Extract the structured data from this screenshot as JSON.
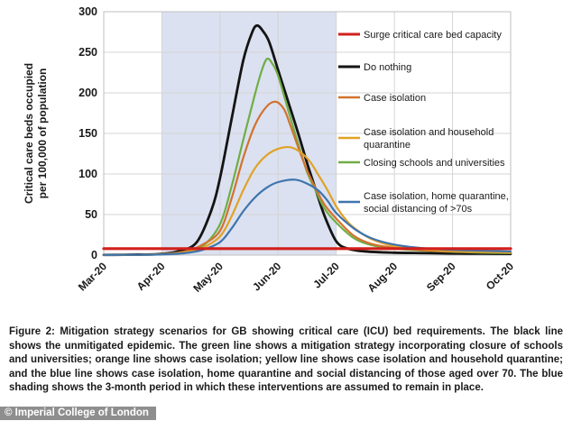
{
  "chart_data": {
    "type": "line",
    "title": "",
    "ylabel_lines": [
      "Critical care beds occupied",
      "per 100,000 of population"
    ],
    "xlabel": "",
    "x_tick_labels": [
      "Mar-20",
      "Apr-20",
      "May-20",
      "Jun-20",
      "Jul-20",
      "Aug-20",
      "Sep-20",
      "Oct-20"
    ],
    "y_ticks": [
      0,
      50,
      100,
      150,
      200,
      250,
      300
    ],
    "ylim": [
      0,
      300
    ],
    "x_unit": "months since Mar-20",
    "xlim_months": [
      0,
      7
    ],
    "grid": true,
    "shading": {
      "start_month": 1,
      "end_month": 4,
      "start_label": "Apr-20",
      "end_label": "Jul-20",
      "color": "#dbe1f0",
      "meaning": "3-month period in which interventions are assumed to remain in place"
    },
    "series": [
      {
        "name": "Do nothing",
        "color": "#141414",
        "width": 2.8,
        "points": [
          [
            0,
            0.3
          ],
          [
            0.6,
            0.6
          ],
          [
            1.0,
            1.5
          ],
          [
            1.3,
            5
          ],
          [
            1.6,
            16
          ],
          [
            1.85,
            55
          ],
          [
            2.0,
            95
          ],
          [
            2.2,
            168
          ],
          [
            2.4,
            240
          ],
          [
            2.55,
            274
          ],
          [
            2.64,
            283
          ],
          [
            2.75,
            275
          ],
          [
            2.85,
            262
          ],
          [
            3.0,
            228
          ],
          [
            3.2,
            183
          ],
          [
            3.35,
            149
          ],
          [
            3.5,
            113
          ],
          [
            3.65,
            80
          ],
          [
            3.8,
            48
          ],
          [
            4.0,
            17
          ],
          [
            4.2,
            8
          ],
          [
            4.5,
            4.5
          ],
          [
            5.0,
            3
          ],
          [
            5.5,
            2.5
          ],
          [
            6.0,
            2
          ],
          [
            6.5,
            1.8
          ],
          [
            7,
            1.5
          ]
        ]
      },
      {
        "name": "Closing schools and universities",
        "color": "#6fae45",
        "width": 2.2,
        "points": [
          [
            0,
            0.3
          ],
          [
            0.6,
            0.5
          ],
          [
            1.0,
            1
          ],
          [
            1.4,
            4
          ],
          [
            1.7,
            11
          ],
          [
            2.0,
            38
          ],
          [
            2.2,
            85
          ],
          [
            2.4,
            142
          ],
          [
            2.6,
            198
          ],
          [
            2.72,
            228
          ],
          [
            2.81,
            242
          ],
          [
            2.9,
            236
          ],
          [
            3.0,
            221
          ],
          [
            3.2,
            172
          ],
          [
            3.35,
            136
          ],
          [
            3.5,
            102
          ],
          [
            3.65,
            79
          ],
          [
            3.8,
            57
          ],
          [
            4.0,
            40
          ],
          [
            4.3,
            21
          ],
          [
            4.6,
            12.5
          ],
          [
            5.0,
            8
          ],
          [
            5.5,
            5.5
          ],
          [
            6.0,
            4
          ],
          [
            6.5,
            3
          ],
          [
            7,
            2.5
          ]
        ]
      },
      {
        "name": "Case isolation",
        "color": "#d2722f",
        "width": 2.2,
        "points": [
          [
            0,
            0.3
          ],
          [
            0.6,
            0.5
          ],
          [
            1.0,
            1.2
          ],
          [
            1.4,
            4.5
          ],
          [
            1.7,
            13
          ],
          [
            2.0,
            30
          ],
          [
            2.2,
            70
          ],
          [
            2.4,
            120
          ],
          [
            2.6,
            160
          ],
          [
            2.8,
            183
          ],
          [
            2.96,
            189
          ],
          [
            3.1,
            180
          ],
          [
            3.2,
            162
          ],
          [
            3.35,
            132
          ],
          [
            3.5,
            104
          ],
          [
            3.65,
            82
          ],
          [
            3.8,
            62
          ],
          [
            4.0,
            45
          ],
          [
            4.3,
            24
          ],
          [
            4.6,
            14
          ],
          [
            5.0,
            9
          ],
          [
            5.5,
            6
          ],
          [
            6.0,
            4.5
          ],
          [
            6.5,
            3.8
          ],
          [
            7,
            3.2
          ]
        ]
      },
      {
        "name": "Case isolation and household quarantine",
        "color": "#e0a226",
        "width": 2.2,
        "points": [
          [
            0,
            0.3
          ],
          [
            0.6,
            0.5
          ],
          [
            1.0,
            1
          ],
          [
            1.4,
            3.5
          ],
          [
            1.7,
            9
          ],
          [
            2.0,
            23
          ],
          [
            2.2,
            48
          ],
          [
            2.4,
            80
          ],
          [
            2.6,
            107
          ],
          [
            2.8,
            123
          ],
          [
            3.0,
            131
          ],
          [
            3.21,
            133
          ],
          [
            3.4,
            126
          ],
          [
            3.55,
            115
          ],
          [
            3.7,
            98
          ],
          [
            3.85,
            80
          ],
          [
            4.0,
            60
          ],
          [
            4.15,
            45
          ],
          [
            4.3,
            34
          ],
          [
            4.6,
            20
          ],
          [
            5.0,
            11
          ],
          [
            5.5,
            7
          ],
          [
            6.0,
            5
          ],
          [
            6.5,
            4
          ],
          [
            7,
            3.2
          ]
        ]
      },
      {
        "name": "Case isolation, home quarantine, social distancing of >70s",
        "color": "#3e74ae",
        "width": 2.2,
        "points": [
          [
            0,
            0.3
          ],
          [
            0.6,
            0.4
          ],
          [
            1.0,
            0.8
          ],
          [
            1.4,
            2.5
          ],
          [
            1.7,
            6.5
          ],
          [
            2.0,
            16
          ],
          [
            2.2,
            33
          ],
          [
            2.4,
            54
          ],
          [
            2.6,
            71
          ],
          [
            2.8,
            83
          ],
          [
            3.0,
            90
          ],
          [
            3.29,
            93
          ],
          [
            3.5,
            88
          ],
          [
            3.7,
            79
          ],
          [
            3.85,
            67
          ],
          [
            4.0,
            52
          ],
          [
            4.3,
            33
          ],
          [
            4.6,
            21
          ],
          [
            5.0,
            13
          ],
          [
            5.5,
            8.5
          ],
          [
            6.0,
            6.5
          ],
          [
            6.5,
            5.5
          ],
          [
            7,
            4.5
          ]
        ]
      },
      {
        "name": "Surge critical care bed capacity",
        "color": "#d21f1b",
        "width": 3.2,
        "points": [
          [
            0,
            8
          ],
          [
            7,
            8
          ]
        ]
      }
    ],
    "legend": {
      "position": "top-right",
      "items": [
        {
          "label_lines": [
            "Surge critical care bed capacity"
          ],
          "color": "#d21f1b"
        },
        {
          "label_lines": [
            "Do nothing"
          ],
          "color": "#141414"
        },
        {
          "label_lines": [
            "Case isolation"
          ],
          "color": "#d2722f"
        },
        {
          "label_lines": [
            "Case isolation and household",
            "quarantine"
          ],
          "color": "#e0a226"
        },
        {
          "label_lines": [
            "Closing schools and universities"
          ],
          "color": "#6fae45"
        },
        {
          "label_lines": [
            "Case isolation, home quarantine,",
            "social distancing of >70s"
          ],
          "color": "#3e74ae"
        }
      ]
    }
  },
  "caption": {
    "text": "Figure 2: Mitigation strategy scenarios for GB showing critical care (ICU) bed requirements. The black line shows the unmitigated epidemic. The green line shows a mitigation strategy incorporating closure of schools and universities; orange line shows case isolation; yellow line shows case isolation and household quarantine; and the blue line shows case isolation, home quarantine and social distancing of those aged over 70. The blue shading shows the 3-month period in which these interventions are assumed to remain in place."
  },
  "footer": {
    "watermark": "© Imperial College of London"
  }
}
